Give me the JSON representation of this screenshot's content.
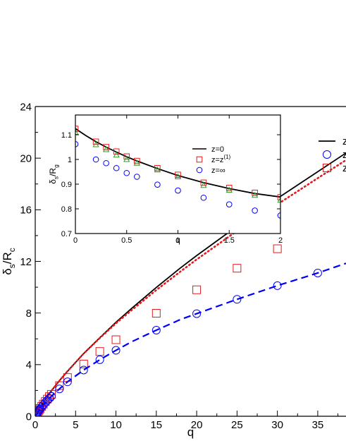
{
  "chart_data": [
    {
      "type": "scatter",
      "xlabel": "q",
      "ylabel_main": "δ",
      "ylabel_sub1": "s",
      "ylabel_mid": "/R",
      "ylabel_sub2": "c",
      "xlim": [
        0,
        38.5
      ],
      "ylim": [
        0,
        24
      ],
      "xticks": [
        0,
        5,
        10,
        15,
        20,
        25,
        30,
        35
      ],
      "yticks": [
        0,
        4,
        8,
        12,
        16,
        20,
        24
      ],
      "legend": {
        "placement": "top-right",
        "entries": [
          {
            "series": 0,
            "text": "z",
            "marker": "line"
          },
          {
            "series": 3,
            "text": "z",
            "marker": "circle"
          },
          {
            "series": 2,
            "text": "z",
            "marker": "square"
          }
        ]
      },
      "series": [
        {
          "style": "solid",
          "color": "#000000",
          "x": [
            0,
            0.25,
            0.5,
            1,
            2,
            3,
            4,
            6,
            8,
            10,
            12,
            15,
            18,
            20,
            25,
            30,
            35,
            38.5
          ],
          "y": [
            0,
            0.28,
            0.55,
            1.06,
            1.97,
            2.76,
            3.49,
            4.86,
            6.09,
            7.28,
            8.39,
            9.98,
            11.5,
            12.45,
            14.72,
            16.88,
            18.95,
            20.4
          ]
        },
        {
          "style": "dotted",
          "color": "#e41a1c",
          "x": [
            0,
            0.25,
            0.5,
            1,
            2,
            3,
            4,
            6,
            8,
            10,
            12,
            15,
            18,
            20,
            25,
            30,
            35,
            38.5
          ],
          "y": [
            0,
            0.28,
            0.55,
            1.06,
            1.97,
            2.76,
            3.49,
            4.86,
            6.06,
            7.2,
            8.25,
            9.78,
            11.22,
            12.15,
            14.36,
            16.42,
            18.45,
            19.85
          ]
        },
        {
          "marker": "square",
          "color": "#e41a1c",
          "x": [
            0.1,
            0.2,
            0.3,
            0.4,
            0.5,
            0.6,
            0.8,
            1,
            1.25,
            1.5,
            1.75,
            2,
            3,
            4,
            6,
            8,
            10,
            15,
            20,
            25,
            30
          ],
          "y": [
            0.12,
            0.22,
            0.31,
            0.41,
            0.5,
            0.6,
            0.77,
            0.94,
            1.14,
            1.33,
            1.52,
            1.7,
            2.37,
            3.0,
            4.05,
            5.02,
            5.93,
            7.98,
            9.8,
            11.47,
            12.98
          ]
        },
        {
          "marker": "circle",
          "color": "#0000ff",
          "x": [
            0.1,
            0.2,
            0.3,
            0.4,
            0.5,
            0.6,
            0.8,
            1,
            1.25,
            1.5,
            1.75,
            2,
            3,
            4,
            6,
            8,
            10,
            15,
            20,
            25,
            30,
            35
          ],
          "y": [
            0.11,
            0.2,
            0.29,
            0.38,
            0.47,
            0.56,
            0.72,
            0.88,
            1.06,
            1.23,
            1.39,
            1.55,
            2.12,
            2.67,
            3.58,
            4.38,
            5.11,
            6.67,
            7.95,
            9.06,
            10.12,
            11.1
          ]
        },
        {
          "style": "dashed",
          "color": "#0000ff",
          "x": [
            0,
            0.25,
            0.5,
            1,
            2,
            3,
            4,
            6,
            8,
            10,
            12,
            15,
            18,
            20,
            25,
            30,
            35,
            38.5
          ],
          "y": [
            0,
            0.22,
            0.45,
            0.88,
            1.55,
            2.12,
            2.67,
            3.58,
            4.38,
            5.11,
            5.79,
            6.67,
            7.5,
            7.95,
            9.06,
            10.12,
            11.1,
            11.85
          ]
        }
      ]
    },
    {
      "type": "scatter",
      "xlabel": "q",
      "ylabel_main": "δ",
      "ylabel_sub1": "s",
      "ylabel_mid": "/R",
      "ylabel_sub2": "g",
      "xlim": [
        0,
        2
      ],
      "ylim": [
        0.7,
        1.18
      ],
      "xticks": [
        0,
        0.5,
        1,
        1.5,
        2
      ],
      "xticklabels": [
        "0",
        "0.5",
        "1",
        "1.5",
        "2"
      ],
      "yticks": [
        0.7,
        0.8,
        0.9,
        1.0,
        1.1
      ],
      "yticklabels": [
        "0.7",
        "0.8",
        "0.9",
        "1",
        "1.1"
      ],
      "legend": {
        "placement": "center-right",
        "entries": [
          {
            "series": 0,
            "text": "z=0",
            "marker": "line"
          },
          {
            "series": 1,
            "text": "z=z",
            "sup": "(1)",
            "marker": "square"
          },
          {
            "series": 3,
            "text": "z=∞",
            "marker": "circle"
          }
        ]
      },
      "series": [
        {
          "style": "solid",
          "color": "#000000",
          "x": [
            0,
            0.1,
            0.2,
            0.3,
            0.4,
            0.5,
            0.6,
            0.8,
            1,
            1.25,
            1.5,
            1.75,
            2
          ],
          "y": [
            1.125,
            1.097,
            1.072,
            1.05,
            1.03,
            1.011,
            0.994,
            0.963,
            0.935,
            0.906,
            0.882,
            0.862,
            0.848
          ]
        },
        {
          "marker": "square",
          "color": "#e41a1c",
          "x": [
            0,
            0.2,
            0.3,
            0.4,
            0.5,
            0.6,
            0.8,
            1,
            1.25,
            1.5,
            1.75,
            2
          ],
          "y": [
            1.124,
            1.072,
            1.05,
            1.032,
            1.012,
            0.994,
            0.965,
            0.938,
            0.906,
            0.885,
            0.865,
            0.847
          ]
        },
        {
          "marker": "triangle",
          "color": "#2ca02c",
          "x": [
            0,
            0.2,
            0.3,
            0.4,
            0.5,
            0.6,
            0.8,
            1,
            1.25,
            1.5,
            1.75,
            2
          ],
          "y": [
            1.11,
            1.06,
            1.04,
            1.018,
            1.0,
            0.985,
            0.958,
            0.93,
            0.895,
            0.876,
            0.855,
            0.835
          ]
        },
        {
          "marker": "circle",
          "color": "#0000ff",
          "x": [
            0,
            0.2,
            0.3,
            0.4,
            0.5,
            0.6,
            0.8,
            1,
            1.25,
            1.5,
            1.75,
            2
          ],
          "y": [
            1.062,
            1.0,
            0.985,
            0.965,
            0.945,
            0.93,
            0.898,
            0.874,
            0.845,
            0.818,
            0.793,
            0.773
          ]
        }
      ]
    }
  ]
}
